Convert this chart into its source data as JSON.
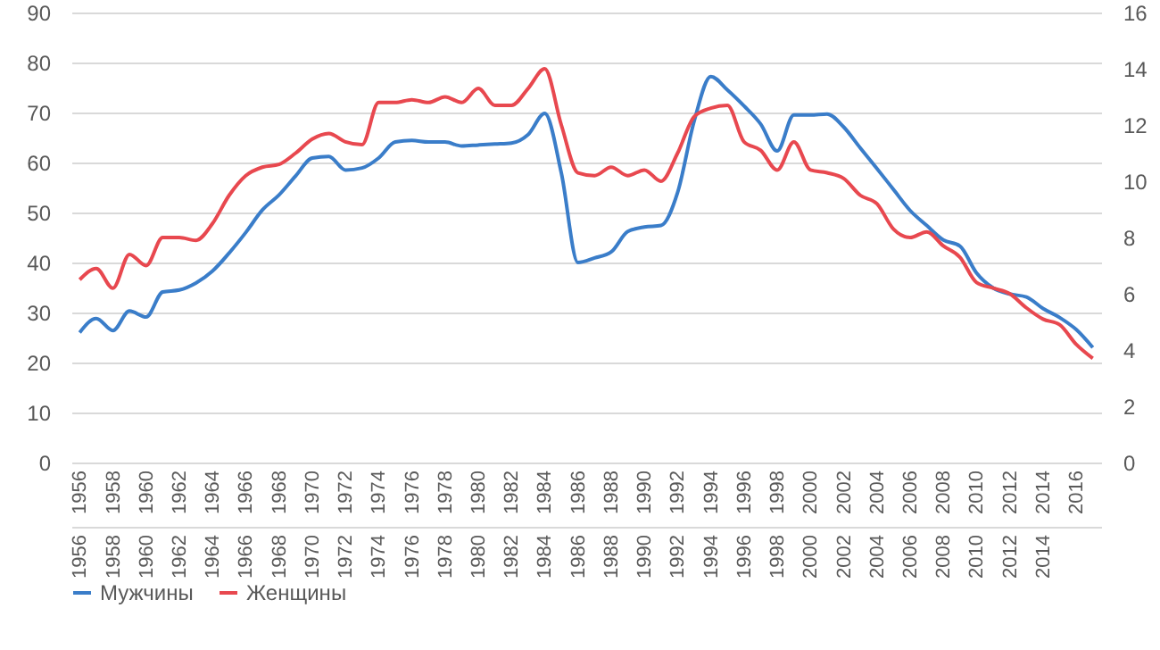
{
  "chart_data": {
    "type": "line",
    "x": [
      1956,
      1957,
      1958,
      1959,
      1960,
      1961,
      1962,
      1963,
      1964,
      1965,
      1966,
      1967,
      1968,
      1969,
      1970,
      1971,
      1972,
      1973,
      1974,
      1975,
      1976,
      1977,
      1978,
      1979,
      1980,
      1981,
      1982,
      1983,
      1984,
      1985,
      1986,
      1987,
      1988,
      1989,
      1990,
      1991,
      1992,
      1993,
      1994,
      1995,
      1996,
      1997,
      1998,
      1999,
      2000,
      2001,
      2002,
      2003,
      2004,
      2005,
      2006,
      2007,
      2008,
      2009,
      2010,
      2011,
      2012,
      2013,
      2014,
      2015,
      2016,
      2017
    ],
    "series": [
      {
        "name": "Мужчины",
        "color": "#3a7dc9",
        "values": [
          26.0,
          28.8,
          26.4,
          30.3,
          29.1,
          34.1,
          34.5,
          35.9,
          38.3,
          41.9,
          46.0,
          50.5,
          53.5,
          57.3,
          60.9,
          61.2,
          58.5,
          58.9,
          60.9,
          64.1,
          64.4,
          64.1,
          64.1,
          63.3,
          63.5,
          63.7,
          63.9,
          65.6,
          69.8,
          57.9,
          40.0,
          40.9,
          42.1,
          46.2,
          47.1,
          47.4,
          54.0,
          68.3,
          77.2,
          74.5,
          71.3,
          67.7,
          62.3,
          69.5,
          69.5,
          69.7,
          67.1,
          62.9,
          58.8,
          54.6,
          50.4,
          47.4,
          44.5,
          43.3,
          37.9,
          34.9,
          33.7,
          33.1,
          30.8,
          29.0,
          26.6,
          23.0
        ]
      },
      {
        "name": "Женщины",
        "color": "#e8484f",
        "axis": "y2",
        "values": [
          6.5,
          6.9,
          6.2,
          7.4,
          7.0,
          8.0,
          8.0,
          7.9,
          8.5,
          9.5,
          10.2,
          10.5,
          10.6,
          11.0,
          11.5,
          11.7,
          11.4,
          11.3,
          12.8,
          12.8,
          12.9,
          12.8,
          13.0,
          12.8,
          13.3,
          12.7,
          12.7,
          13.3,
          14.0,
          12.0,
          10.3,
          10.2,
          10.5,
          10.2,
          10.4,
          10.0,
          11.0,
          12.3,
          12.6,
          12.7,
          11.4,
          11.1,
          10.4,
          11.4,
          10.4,
          10.3,
          10.1,
          9.5,
          9.2,
          8.3,
          8.0,
          8.2,
          7.7,
          7.3,
          6.4,
          6.2,
          6.0,
          5.5,
          5.1,
          4.9,
          4.2,
          3.7
        ]
      }
    ],
    "xlim": [
      1955.5,
      2017.5
    ],
    "xticks": [
      1956,
      1958,
      1960,
      1962,
      1964,
      1966,
      1968,
      1970,
      1972,
      1974,
      1976,
      1978,
      1980,
      1982,
      1984,
      1986,
      1988,
      1990,
      1992,
      1994,
      1996,
      1998,
      2000,
      2002,
      2004,
      2006,
      2008,
      2010,
      2012,
      2014,
      2016
    ],
    "x2lim": [
      1955.5,
      2017.5
    ],
    "x2ticks": [
      1956,
      1958,
      1960,
      1962,
      1964,
      1966,
      1968,
      1970,
      1972,
      1974,
      1976,
      1978,
      1980,
      1982,
      1984,
      1986,
      1988,
      1990,
      1992,
      1994,
      1996,
      1998,
      2000,
      2002,
      2004,
      2006,
      2008,
      2010,
      2012,
      2014
    ],
    "ylim": [
      0,
      90
    ],
    "yticks": [
      0,
      10,
      20,
      30,
      40,
      50,
      60,
      70,
      80,
      90
    ],
    "y2lim": [
      0,
      16
    ],
    "y2ticks": [
      0,
      2,
      4,
      6,
      8,
      10,
      12,
      14,
      16
    ],
    "grid": "y",
    "legend": "bottom",
    "marker": "none",
    "line_style": "solid"
  }
}
